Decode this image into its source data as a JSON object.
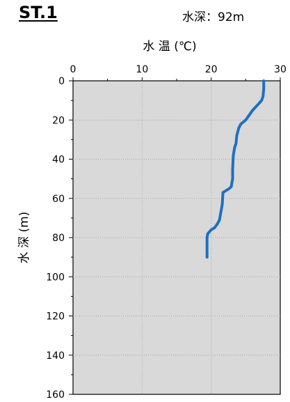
{
  "header": {
    "station": "ST.1",
    "depth_label": "水深：92m"
  },
  "chart_data": {
    "type": "line",
    "title": "",
    "xlabel": "水 温 (℃)",
    "ylabel": "水 深 (m)",
    "xlim": [
      0,
      30
    ],
    "ylim": [
      0,
      160
    ],
    "y_inverted": true,
    "x_axis_position": "top",
    "x_ticks": [
      0,
      10,
      20,
      30
    ],
    "y_ticks": [
      0,
      20,
      40,
      60,
      80,
      100,
      120,
      140,
      160
    ],
    "grid": true,
    "line_color": "#1f6fc1",
    "plot_background": "#d9d9d9",
    "series": [
      {
        "x": [
          27.6,
          27.6,
          27.5,
          27.3,
          26.8,
          26.0,
          25.6,
          25.0,
          24.3,
          24.0,
          23.7,
          23.6,
          23.4,
          23.2,
          23.1,
          23.1,
          22.9,
          22.6,
          21.7,
          21.6,
          21.5,
          21.2,
          20.9,
          20.5,
          20.0,
          19.5,
          19.4,
          19.4
        ],
        "y": [
          0,
          4,
          8,
          10,
          12,
          15,
          17,
          20,
          22,
          24,
          28,
          32,
          34,
          38,
          45,
          50,
          54,
          55,
          57,
          63,
          65,
          71,
          73,
          75,
          76,
          78,
          80,
          90
        ]
      }
    ]
  }
}
